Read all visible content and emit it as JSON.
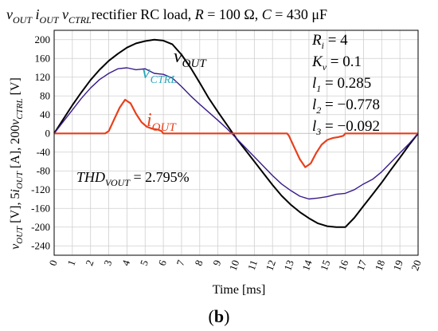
{
  "chart_data": {
    "type": "line",
    "title_parts": {
      "v_out": "v",
      "v_out_sub": "OUT",
      "i_out": "i",
      "i_out_sub": "OUT",
      "v_ctrl": "v",
      "v_ctrl_sub": "CTRL",
      "rest": "rectifier RC load,",
      "r_sym": "R",
      "r_val": " = 100 Ω,",
      "c_sym": "C",
      "c_val": " = 430 μF"
    },
    "xlabel": "Time [ms]",
    "ylabel_parts": {
      "v1": "v",
      "v1_sub": "OUT",
      "unit1": " [V], 5",
      "i1": "i",
      "i1_sub": "OUT",
      "unit2": " [A], 200",
      "v2": "v",
      "v2_sub": "CTRL",
      "unit3": "  [V]"
    },
    "xlim": [
      0,
      20
    ],
    "ylim": [
      -260,
      220
    ],
    "x_ticks": [
      "0",
      "1",
      "2",
      "3",
      "4",
      "5",
      "6",
      "7",
      "8",
      "9",
      "10",
      "11",
      "12",
      "13",
      "14",
      "15",
      "16",
      "17",
      "18",
      "19",
      "20"
    ],
    "y_ticks": [
      "200",
      "160",
      "120",
      "80",
      "40",
      "0",
      "-40",
      "-80",
      "-120",
      "-160",
      "-200",
      "-240"
    ],
    "grid": true,
    "series": [
      {
        "name": "v_OUT",
        "color": "#000000",
        "x": [
          0,
          0.5,
          1,
          1.5,
          2,
          2.5,
          3,
          3.5,
          4,
          4.5,
          5,
          5.5,
          6,
          6.5,
          7,
          7.5,
          8,
          8.5,
          9,
          9.5,
          10,
          10.5,
          11,
          11.5,
          12,
          12.5,
          13,
          13.5,
          14,
          14.5,
          15,
          15.5,
          16,
          16.5,
          17,
          17.5,
          18,
          18.5,
          19,
          19.5,
          20
        ],
        "values": [
          0,
          30,
          60,
          88,
          114,
          136,
          155,
          170,
          183,
          192,
          197,
          200,
          198,
          190,
          168,
          140,
          108,
          75,
          46,
          18,
          -10,
          -35,
          -60,
          -85,
          -110,
          -133,
          -152,
          -168,
          -181,
          -192,
          -198,
          -200,
          -200,
          -180,
          -155,
          -130,
          -105,
          -78,
          -52,
          -25,
          0
        ]
      },
      {
        "name": "v_CTRL",
        "color": "#3a1b8a",
        "x": [
          0,
          0.5,
          1,
          1.5,
          2,
          2.5,
          3,
          3.5,
          4,
          4.5,
          5,
          5.5,
          6,
          6.5,
          7,
          7.5,
          8,
          8.5,
          9,
          9.5,
          10,
          10.5,
          11,
          11.5,
          12,
          12.5,
          13,
          13.5,
          14,
          14.5,
          15,
          15.5,
          16,
          16.5,
          17,
          17.5,
          18,
          18.5,
          19,
          19.5,
          20
        ],
        "values": [
          0,
          25,
          50,
          75,
          97,
          115,
          128,
          138,
          140,
          136,
          138,
          128,
          126,
          118,
          100,
          80,
          62,
          45,
          28,
          10,
          -10,
          -30,
          -50,
          -70,
          -90,
          -108,
          -122,
          -134,
          -140,
          -138,
          -135,
          -130,
          -128,
          -120,
          -108,
          -98,
          -82,
          -62,
          -42,
          -22,
          0
        ]
      },
      {
        "name": "i_OUT",
        "color": "#e8401c",
        "x": [
          0,
          2.8,
          3.0,
          3.3,
          3.6,
          3.9,
          4.2,
          4.5,
          4.8,
          5.1,
          5.4,
          5.7,
          5.9,
          6.0,
          12.8,
          12.9,
          13.2,
          13.5,
          13.8,
          14.1,
          14.4,
          14.7,
          15.0,
          15.3,
          15.6,
          15.9,
          16.0,
          20
        ],
        "values": [
          0,
          0,
          5,
          30,
          55,
          72,
          64,
          42,
          24,
          14,
          10,
          8,
          5,
          0,
          0,
          -5,
          -30,
          -55,
          -72,
          -64,
          -42,
          -24,
          -14,
          -10,
          -8,
          -5,
          0,
          0
        ]
      }
    ],
    "labels": {
      "v_out": "v",
      "v_out_sub": "OUT",
      "v_ctrl": "v",
      "v_ctrl_sub": "CTRL",
      "i_out": "i",
      "i_out_sub": "OUT"
    },
    "thd_parts": {
      "sym": "THD",
      "sub": "VOUT",
      "val": " = 2.795%"
    },
    "params": [
      {
        "sym": "R",
        "sub": "i",
        "val": " = 4"
      },
      {
        "sym": "K",
        "sub": "v",
        "val": " = 0.1"
      },
      {
        "sym": "l",
        "sub": "1",
        "val": " = 0.285"
      },
      {
        "sym": "l",
        "sub": "2",
        "val": " = −0.778"
      },
      {
        "sym": "l",
        "sub": "3",
        "val": " = −0.092"
      }
    ],
    "panel_label": "(b)"
  }
}
